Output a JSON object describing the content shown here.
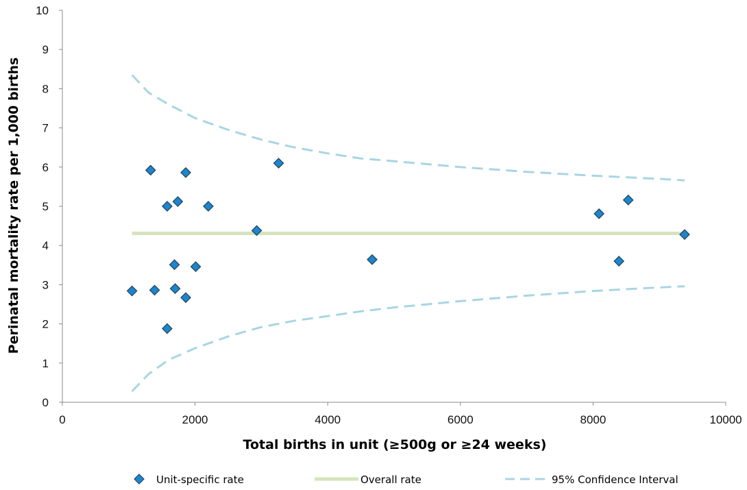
{
  "chart_data": {
    "type": "scatter",
    "xlabel": "Total births in unit (≥500g or ≥24 weeks)",
    "ylabel": "Perinatal mortality rate per 1,000 births",
    "xlim": [
      0,
      10000
    ],
    "ylim": [
      0,
      10
    ],
    "x_ticks": [
      0,
      2000,
      4000,
      6000,
      8000,
      10000
    ],
    "y_ticks": [
      0,
      1,
      2,
      3,
      4,
      5,
      6,
      7,
      8,
      9,
      10
    ],
    "grid": false,
    "legend_position": "bottom",
    "series": [
      {
        "name": "Unit-specific rate",
        "kind": "scatter",
        "marker": "diamond",
        "color": "#1b86cf",
        "points": [
          {
            "x": 1050,
            "y": 2.84
          },
          {
            "x": 1330,
            "y": 5.92
          },
          {
            "x": 1390,
            "y": 2.86
          },
          {
            "x": 1580,
            "y": 5.0
          },
          {
            "x": 1580,
            "y": 1.88
          },
          {
            "x": 1690,
            "y": 3.51
          },
          {
            "x": 1700,
            "y": 2.9
          },
          {
            "x": 1740,
            "y": 5.12
          },
          {
            "x": 1860,
            "y": 5.86
          },
          {
            "x": 1860,
            "y": 2.67
          },
          {
            "x": 2010,
            "y": 3.46
          },
          {
            "x": 2200,
            "y": 5.0
          },
          {
            "x": 2930,
            "y": 4.38
          },
          {
            "x": 3260,
            "y": 6.1
          },
          {
            "x": 4670,
            "y": 3.64
          },
          {
            "x": 8090,
            "y": 4.81
          },
          {
            "x": 8390,
            "y": 3.6
          },
          {
            "x": 8530,
            "y": 5.16
          },
          {
            "x": 9380,
            "y": 4.28
          }
        ]
      },
      {
        "name": "Overall rate",
        "kind": "line",
        "color": "#d6e4bd",
        "points": [
          {
            "x": 1050,
            "y": 4.31
          },
          {
            "x": 9380,
            "y": 4.31
          }
        ]
      },
      {
        "name": "95% Confidence Interval",
        "kind": "dashed",
        "color": "#a8d5e2",
        "upper": [
          {
            "x": 1050,
            "y": 8.35
          },
          {
            "x": 1300,
            "y": 7.9
          },
          {
            "x": 1600,
            "y": 7.6
          },
          {
            "x": 2000,
            "y": 7.25
          },
          {
            "x": 2500,
            "y": 6.95
          },
          {
            "x": 3000,
            "y": 6.7
          },
          {
            "x": 3500,
            "y": 6.5
          },
          {
            "x": 4000,
            "y": 6.35
          },
          {
            "x": 4500,
            "y": 6.22
          },
          {
            "x": 5000,
            "y": 6.15
          },
          {
            "x": 6000,
            "y": 6.0
          },
          {
            "x": 7000,
            "y": 5.88
          },
          {
            "x": 8000,
            "y": 5.78
          },
          {
            "x": 9000,
            "y": 5.7
          },
          {
            "x": 9380,
            "y": 5.66
          }
        ],
        "lower": [
          {
            "x": 1050,
            "y": 0.28
          },
          {
            "x": 1300,
            "y": 0.72
          },
          {
            "x": 1600,
            "y": 1.08
          },
          {
            "x": 2000,
            "y": 1.38
          },
          {
            "x": 2500,
            "y": 1.68
          },
          {
            "x": 3000,
            "y": 1.92
          },
          {
            "x": 3500,
            "y": 2.08
          },
          {
            "x": 4000,
            "y": 2.2
          },
          {
            "x": 4500,
            "y": 2.32
          },
          {
            "x": 5000,
            "y": 2.42
          },
          {
            "x": 6000,
            "y": 2.58
          },
          {
            "x": 7000,
            "y": 2.72
          },
          {
            "x": 8000,
            "y": 2.84
          },
          {
            "x": 9000,
            "y": 2.93
          },
          {
            "x": 9380,
            "y": 2.96
          }
        ]
      }
    ]
  }
}
